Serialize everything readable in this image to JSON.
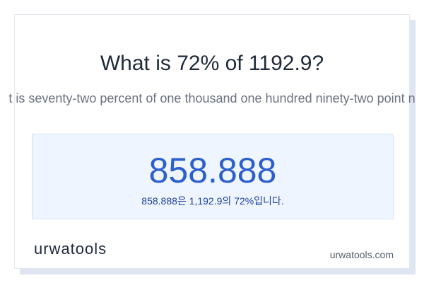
{
  "header": {
    "title": "What is 72% of 1192.9?",
    "subtitle": "t is seventy-two percent of one thousand one hundred ninety-two point n"
  },
  "result": {
    "value": "858.888",
    "sentence": "858.888은 1,192.9의 72%입니다."
  },
  "footer": {
    "logo": "urwatools",
    "site": "urwatools.com"
  }
}
